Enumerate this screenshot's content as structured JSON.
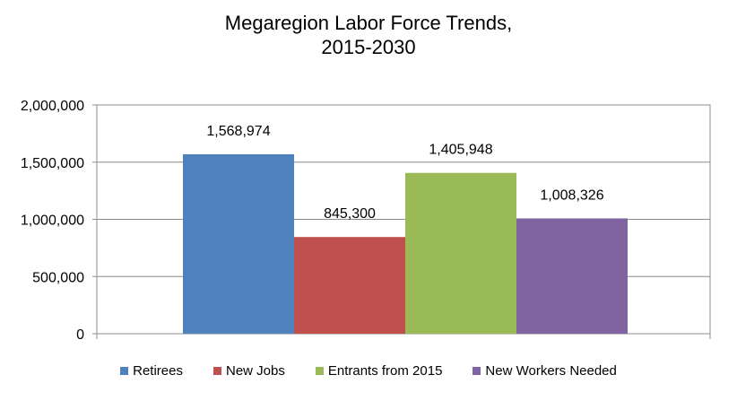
{
  "chart_data": {
    "type": "bar",
    "title_lines": [
      "Megaregion Labor Force Trends,",
      "2015-2030"
    ],
    "categories": [
      "Retirees",
      "New Jobs",
      "Entrants from 2015",
      "New Workers Needed"
    ],
    "values": [
      1568974,
      845300,
      1405948,
      1008326
    ],
    "data_labels": [
      "1,568,974",
      "845,300",
      "1,405,948",
      "1,008,326"
    ],
    "colors": [
      "#4F81BD",
      "#C0504D",
      "#9BBB59",
      "#8064A2"
    ],
    "ylim": [
      0,
      2000000
    ],
    "yticks": [
      0,
      500000,
      1000000,
      1500000,
      2000000
    ],
    "ytick_labels": [
      "0",
      "500,000",
      "1,000,000",
      "1,500,000",
      "2,000,000"
    ],
    "grid": true,
    "legend_position": "bottom"
  }
}
